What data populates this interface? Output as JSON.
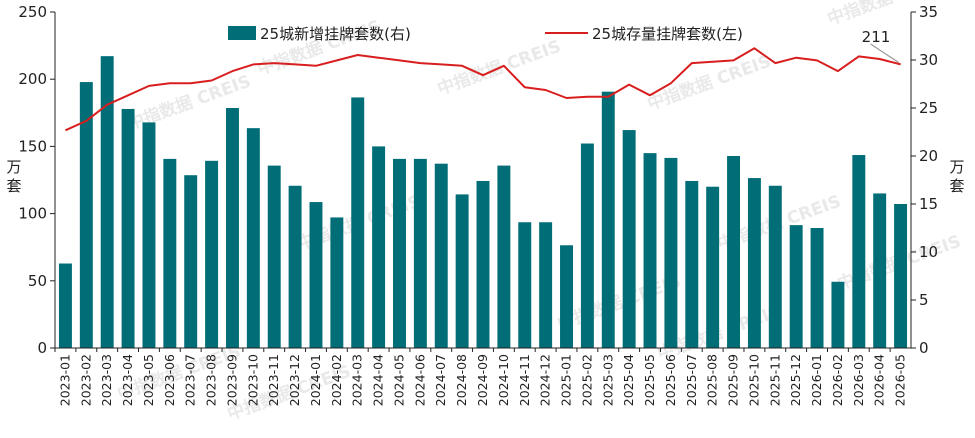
{
  "chart_data": {
    "type": "bar+line",
    "watermark": "中指数据 CREIS",
    "categories": [
      "2023-01",
      "2023-02",
      "2023-03",
      "2023-04",
      "2023-05",
      "2023-06",
      "2023-07",
      "2023-08",
      "2023-09",
      "2023-10",
      "2023-11",
      "2023-12",
      "2024-01",
      "2024-02",
      "2024-03",
      "2024-04",
      "2024-05",
      "2024-06",
      "2024-07",
      "2024-08",
      "2024-09",
      "2024-10",
      "2024-11",
      "2024-12",
      "2025-01",
      "2025-02",
      "2025-03",
      "2025-04",
      "2025-05",
      "2025-06",
      "2025-07",
      "2025-08",
      "2025-09",
      "2025-10",
      "2025-11",
      "2025-12",
      "2026-01",
      "2026-02",
      "2026-03",
      "2026-04",
      "2026-05"
    ],
    "left_axis": {
      "ylim": [
        0,
        250
      ],
      "ticks": [
        "0",
        "50",
        "100",
        "150",
        "200",
        "250"
      ],
      "unit": "万套"
    },
    "right_axis": {
      "ylim": [
        0,
        35
      ],
      "ticks": [
        "0",
        "5",
        "10",
        "15",
        "20",
        "25",
        "30",
        "35"
      ],
      "unit": "万套"
    },
    "series": [
      {
        "name": "25城新增挂牌套数(右)",
        "type": "bar",
        "axis": "right",
        "color": "#006d77",
        "values": [
          8.8,
          27.7,
          30.4,
          24.9,
          23.5,
          19.7,
          18.0,
          19.5,
          25.0,
          22.9,
          19.0,
          16.9,
          15.2,
          13.6,
          26.1,
          21.0,
          19.7,
          19.7,
          19.2,
          16.0,
          17.4,
          19.0,
          13.1,
          13.1,
          10.7,
          21.3,
          26.7,
          22.7,
          20.3,
          19.8,
          17.4,
          16.8,
          20.0,
          17.7,
          16.9,
          12.8,
          12.5,
          6.9,
          20.1,
          16.1,
          15.0
        ]
      },
      {
        "name": "25城存量挂牌套数(左)",
        "type": "line",
        "axis": "left",
        "color": "#d81e1e",
        "values": [
          162,
          169,
          181,
          188,
          195,
          197,
          197,
          199,
          206,
          211,
          212,
          211,
          210,
          214,
          218,
          216,
          214,
          212,
          211,
          210,
          203,
          210,
          194,
          192,
          186,
          187,
          187,
          196,
          188,
          197,
          212,
          213,
          214,
          223,
          212,
          216,
          214,
          206,
          217,
          215,
          211
        ]
      }
    ],
    "annotation": {
      "text": "211",
      "category": "2026-05"
    },
    "legend_position": "top",
    "grid": false
  }
}
